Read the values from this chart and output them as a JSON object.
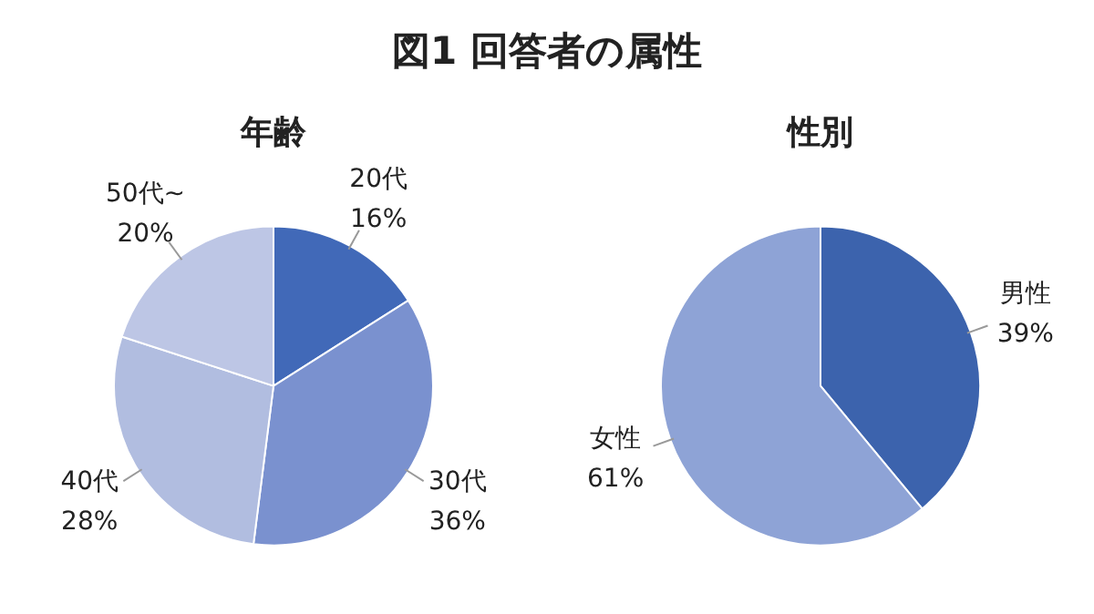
{
  "chart_data": [
    {
      "type": "pie",
      "title": "年齢",
      "annotations": [
        "図1 回答者の属性"
      ],
      "categories": [
        "20代",
        "30代",
        "40代",
        "50代~"
      ],
      "values": [
        16,
        36,
        28,
        20
      ],
      "value_labels": [
        "16%",
        "36%",
        "28%",
        "20%"
      ],
      "colors": [
        "#4169b8",
        "#7a91cf",
        "#b1bde0",
        "#bdc6e5"
      ],
      "legend": false
    },
    {
      "type": "pie",
      "title": "性別",
      "categories": [
        "男性",
        "女性"
      ],
      "values": [
        39,
        61
      ],
      "value_labels": [
        "39%",
        "61%"
      ],
      "colors": [
        "#3c63ad",
        "#8ea3d6"
      ],
      "legend": false
    }
  ]
}
